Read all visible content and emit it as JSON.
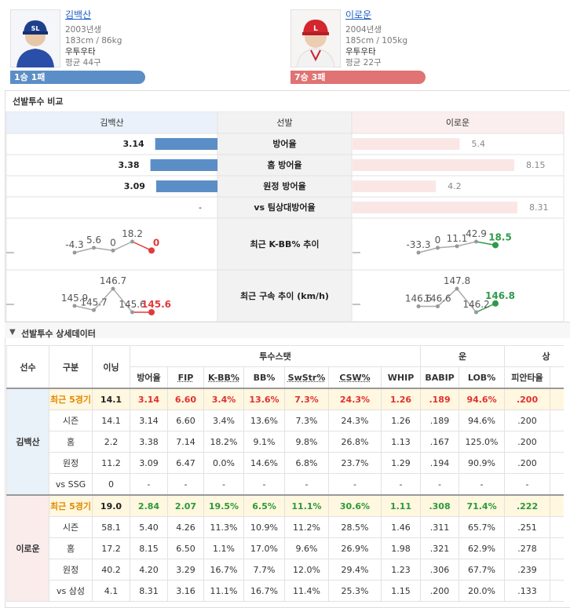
{
  "players": [
    {
      "name": "김백산",
      "birth": "2003년생",
      "body": "183cm / 86kg",
      "hand": "우투우타",
      "avg_pitches": "평균 44구",
      "record": "1승 1패"
    },
    {
      "name": "이로운",
      "birth": "2004년생",
      "body": "185cm / 105kg",
      "hand": "우투우타",
      "avg_pitches": "평균 22구",
      "record": "7승 3패"
    }
  ],
  "comparison": {
    "title": "선발투수 비교",
    "header": [
      "김백산",
      "선발",
      "이로운"
    ],
    "rows": [
      {
        "label": "방어율",
        "left": 3.14,
        "right": 5.4
      },
      {
        "label": "홈 방어율",
        "left": 3.38,
        "right": 8.15
      },
      {
        "label": "원정 방어율",
        "left": 3.09,
        "right": 4.2
      },
      {
        "label": "vs 팀상대방어율",
        "left": "-",
        "right": 8.31
      }
    ],
    "trends": [
      {
        "label": "최근 K-BB% 추이",
        "left": [
          -4.3,
          5.6,
          0,
          18.2,
          0
        ],
        "right": [
          -33.3,
          0,
          11.1,
          42.9,
          18.5
        ]
      },
      {
        "label": "최근 구속 추이 (km/h)",
        "left": [
          145.9,
          145.7,
          146.7,
          145.6,
          145.6
        ],
        "right": [
          146.6,
          146.6,
          147.8,
          146.2,
          146.8
        ]
      }
    ]
  },
  "detail": {
    "title": "선발투수 상세데이터",
    "head_top": [
      "선수",
      "구분",
      "이닝",
      "투수스탯",
      "운",
      "상"
    ],
    "columns": [
      "방어율",
      "FIP",
      "K-BB%",
      "BB%",
      "SwStr%",
      "CSW%",
      "WHIP",
      "BABIP",
      "LOB%",
      "피안타율"
    ],
    "groups": [
      {
        "player": "김백산",
        "rows": [
          [
            "최근 5경기",
            "14.1",
            "3.14",
            "6.60",
            "3.4%",
            "13.6%",
            "7.3%",
            "24.3%",
            "1.26",
            ".189",
            "94.6%",
            ".200"
          ],
          [
            "시즌",
            "14.1",
            "3.14",
            "6.60",
            "3.4%",
            "13.6%",
            "7.3%",
            "24.3%",
            "1.26",
            ".189",
            "94.6%",
            ".200"
          ],
          [
            "홈",
            "2.2",
            "3.38",
            "7.14",
            "18.2%",
            "9.1%",
            "9.8%",
            "26.8%",
            "1.13",
            ".167",
            "125.0%",
            ".200"
          ],
          [
            "원정",
            "11.2",
            "3.09",
            "6.47",
            "0.0%",
            "14.6%",
            "6.8%",
            "23.7%",
            "1.29",
            ".194",
            "90.9%",
            ".200"
          ],
          [
            "vs SSG",
            "0",
            "-",
            "-",
            "-",
            "-",
            "-",
            "-",
            "-",
            "-",
            "-",
            "-"
          ]
        ]
      },
      {
        "player": "이로운",
        "rows": [
          [
            "최근 5경기",
            "19.0",
            "2.84",
            "2.07",
            "19.5%",
            "6.5%",
            "11.1%",
            "30.6%",
            "1.11",
            ".308",
            "71.4%",
            ".222"
          ],
          [
            "시즌",
            "58.1",
            "5.40",
            "4.26",
            "11.3%",
            "10.9%",
            "11.2%",
            "28.5%",
            "1.46",
            ".311",
            "65.7%",
            ".251"
          ],
          [
            "홈",
            "17.2",
            "8.15",
            "6.50",
            "1.1%",
            "17.0%",
            "9.6%",
            "26.9%",
            "1.98",
            ".321",
            "62.9%",
            ".278"
          ],
          [
            "원정",
            "40.2",
            "4.20",
            "3.29",
            "16.7%",
            "7.7%",
            "12.0%",
            "29.4%",
            "1.23",
            ".306",
            "67.7%",
            ".239"
          ],
          [
            "vs 삼성",
            "4.1",
            "8.31",
            "3.16",
            "11.1%",
            "16.7%",
            "11.4%",
            "25.3%",
            "1.15",
            ".200",
            "20.0%",
            ".133"
          ]
        ]
      }
    ]
  }
}
